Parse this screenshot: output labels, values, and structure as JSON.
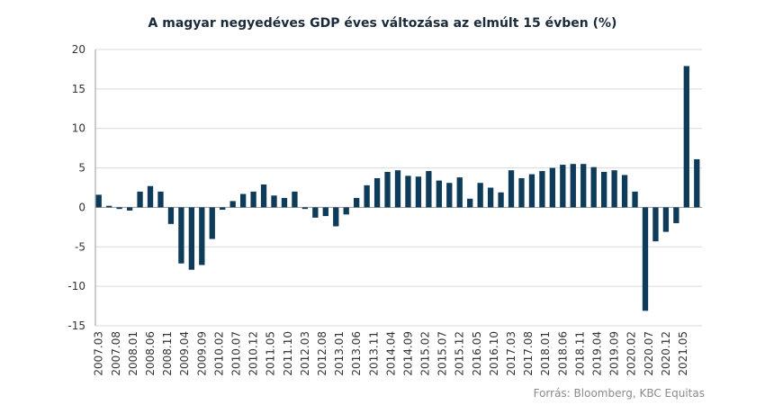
{
  "chart_data": {
    "type": "bar",
    "title": "A magyar negyedéves GDP éves változása az elmúlt  15 évben (%)",
    "source": "Forrás: Bloomberg,  KBC Equitas",
    "color": "#0d3b59",
    "x": [
      "2007.03",
      "2007.06",
      "2007.09",
      "2007.12",
      "2008.03",
      "2008.06",
      "2008.09",
      "2008.12",
      "2009.03",
      "2009.06",
      "2009.09",
      "2009.12",
      "2010.03",
      "2010.06",
      "2010.09",
      "2010.12",
      "2011.03",
      "2011.06",
      "2011.09",
      "2011.12",
      "2012.03",
      "2012.06",
      "2012.09",
      "2012.12",
      "2013.03",
      "2013.06",
      "2013.09",
      "2013.12",
      "2014.03",
      "2014.06",
      "2014.09",
      "2014.12",
      "2015.03",
      "2015.06",
      "2015.09",
      "2015.12",
      "2016.03",
      "2016.06",
      "2016.09",
      "2016.12",
      "2017.03",
      "2017.06",
      "2017.09",
      "2017.12",
      "2018.03",
      "2018.06",
      "2018.09",
      "2018.12",
      "2019.03",
      "2019.06",
      "2019.09",
      "2019.12",
      "2020.03",
      "2020.06",
      "2020.09",
      "2020.12",
      "2021.03",
      "2021.06",
      "2021.09"
    ],
    "values": [
      1.6,
      0.2,
      -0.2,
      -0.4,
      2.0,
      2.7,
      2.0,
      -2.1,
      -7.1,
      -7.9,
      -7.3,
      -4.0,
      -0.3,
      0.8,
      1.7,
      2.0,
      2.9,
      1.5,
      1.2,
      2.0,
      -0.2,
      -1.3,
      -1.1,
      -2.4,
      -0.9,
      1.2,
      2.8,
      3.7,
      4.5,
      4.7,
      4.0,
      3.9,
      4.6,
      3.4,
      3.1,
      3.8,
      1.1,
      3.1,
      2.5,
      1.9,
      4.7,
      3.7,
      4.2,
      4.6,
      5.0,
      5.4,
      5.5,
      5.5,
      5.1,
      4.5,
      4.7,
      4.1,
      2.0,
      -13.1,
      -4.3,
      -3.1,
      -2.0,
      17.9,
      6.1
    ],
    "xlim": [
      "2007.03",
      "2021.09"
    ],
    "xticks": [
      "2007.03",
      "2007.08",
      "2008.01",
      "2008.06",
      "2008.11",
      "2009.04",
      "2009.09",
      "2010.02",
      "2010.07",
      "2010.12",
      "2011.05",
      "2011.10",
      "2012.03",
      "2012.08",
      "2013.01",
      "2013.06",
      "2013.11",
      "2014.04",
      "2014.09",
      "2015.02",
      "2015.07",
      "2015.12",
      "2016.05",
      "2016.10",
      "2017.03",
      "2017.08",
      "2018.01",
      "2018.06",
      "2018.11",
      "2019.04",
      "2019.09",
      "2020.02",
      "2020.07",
      "2020.12",
      "2021.05"
    ],
    "ylim": [
      -15,
      20
    ],
    "yticks": [
      -15,
      -10,
      -5,
      0,
      5,
      10,
      15,
      20
    ],
    "grid": true
  }
}
